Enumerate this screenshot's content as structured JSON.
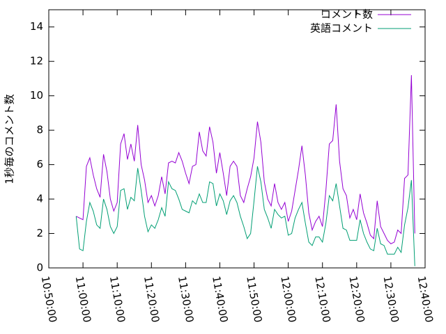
{
  "chart_data": {
    "type": "line",
    "ylabel": "1秒毎のコメント数",
    "x": [
      "10:58:00",
      "10:59:00",
      "11:00:00",
      "11:01:00",
      "11:02:00",
      "11:03:00",
      "11:04:00",
      "11:05:00",
      "11:06:00",
      "11:07:00",
      "11:08:00",
      "11:09:00",
      "11:10:00",
      "11:11:00",
      "11:12:00",
      "11:13:00",
      "11:14:00",
      "11:15:00",
      "11:16:00",
      "11:17:00",
      "11:18:00",
      "11:19:00",
      "11:20:00",
      "11:21:00",
      "11:22:00",
      "11:23:00",
      "11:24:00",
      "11:25:00",
      "11:26:00",
      "11:27:00",
      "11:28:00",
      "11:29:00",
      "11:30:00",
      "11:31:00",
      "11:32:00",
      "11:33:00",
      "11:34:00",
      "11:35:00",
      "11:36:00",
      "11:37:00",
      "11:38:00",
      "11:39:00",
      "11:40:00",
      "11:41:00",
      "11:42:00",
      "11:43:00",
      "11:44:00",
      "11:45:00",
      "11:46:00",
      "11:47:00",
      "11:48:00",
      "11:49:00",
      "11:50:00",
      "11:51:00",
      "11:52:00",
      "11:53:00",
      "11:54:00",
      "11:55:00",
      "11:56:00",
      "11:57:00",
      "11:58:00",
      "11:59:00",
      "12:00:00",
      "12:01:00",
      "12:02:00",
      "12:03:00",
      "12:04:00",
      "12:05:00",
      "12:06:00",
      "12:07:00",
      "12:08:00",
      "12:09:00",
      "12:10:00",
      "12:11:00",
      "12:12:00",
      "12:13:00",
      "12:14:00",
      "12:15:00",
      "12:16:00",
      "12:17:00",
      "12:18:00",
      "12:19:00",
      "12:20:00",
      "12:21:00",
      "12:22:00",
      "12:23:00",
      "12:24:00",
      "12:25:00",
      "12:26:00",
      "12:27:00",
      "12:28:00",
      "12:29:00",
      "12:30:00",
      "12:31:00",
      "12:32:00",
      "12:33:00",
      "12:34:00",
      "12:35:00",
      "12:36:00",
      "12:37:00"
    ],
    "series": [
      {
        "name": "コメント数",
        "color": "#9400d3",
        "values": [
          3.0,
          2.9,
          2.8,
          5.9,
          6.4,
          5.4,
          4.6,
          4.1,
          6.6,
          5.6,
          4.0,
          3.3,
          3.8,
          7.2,
          7.8,
          6.3,
          7.2,
          6.2,
          8.3,
          6.0,
          5.1,
          3.8,
          4.2,
          3.6,
          4.2,
          5.3,
          4.3,
          6.1,
          6.2,
          6.1,
          6.7,
          6.2,
          5.5,
          4.9,
          5.9,
          6.0,
          7.9,
          6.8,
          6.5,
          8.2,
          7.3,
          5.5,
          6.7,
          5.5,
          4.2,
          5.9,
          6.2,
          5.9,
          4.2,
          3.8,
          4.6,
          5.3,
          6.4,
          8.5,
          7.3,
          5.0,
          4.0,
          3.6,
          4.9,
          3.8,
          3.4,
          3.8,
          2.7,
          3.3,
          4.5,
          5.7,
          7.1,
          5.4,
          3.2,
          2.2,
          2.7,
          3.0,
          2.4,
          4.5,
          7.2,
          7.4,
          9.5,
          6.2,
          4.6,
          4.2,
          2.9,
          3.4,
          2.8,
          4.3,
          3.2,
          2.6,
          1.9,
          1.7,
          3.9,
          2.4,
          2.0,
          1.6,
          1.4,
          1.5,
          2.2,
          2.0,
          5.2,
          5.4,
          11.2,
          2.0
        ]
      },
      {
        "name": "英語コメント",
        "color": "#009e73",
        "values": [
          3.0,
          1.1,
          1.0,
          2.7,
          3.8,
          3.3,
          2.5,
          2.3,
          4.0,
          3.4,
          2.4,
          2.0,
          2.4,
          4.5,
          4.6,
          3.4,
          4.1,
          3.9,
          5.8,
          4.5,
          3.0,
          2.1,
          2.5,
          2.3,
          2.8,
          3.5,
          3.0,
          5.0,
          4.6,
          4.5,
          4.0,
          3.4,
          3.3,
          3.2,
          3.9,
          3.7,
          4.3,
          3.8,
          3.8,
          5.0,
          4.9,
          3.6,
          4.3,
          3.9,
          3.1,
          3.9,
          4.2,
          3.8,
          3.0,
          2.4,
          1.7,
          2.0,
          3.9,
          5.9,
          5.0,
          3.4,
          2.9,
          2.3,
          3.4,
          3.1,
          2.9,
          3.0,
          1.9,
          2.0,
          2.9,
          3.4,
          3.8,
          2.6,
          1.5,
          1.3,
          1.8,
          1.8,
          1.5,
          2.6,
          4.2,
          3.9,
          4.9,
          3.6,
          2.3,
          2.2,
          1.6,
          1.6,
          1.6,
          2.8,
          2.0,
          1.5,
          1.1,
          1.0,
          2.3,
          1.4,
          1.3,
          0.8,
          0.8,
          0.8,
          1.2,
          0.9,
          2.5,
          3.5,
          5.1,
          0.1
        ]
      }
    ],
    "xlim": [
      "10:50:00",
      "12:40:00"
    ],
    "xticks": [
      "10:50:00",
      "11:00:00",
      "11:10:00",
      "11:20:00",
      "11:30:00",
      "11:40:00",
      "11:50:00",
      "12:00:00",
      "12:10:00",
      "12:20:00",
      "12:30:00",
      "12:40:00"
    ],
    "ylim": [
      0,
      15
    ],
    "yticks": [
      0,
      2,
      4,
      6,
      8,
      10,
      12,
      14
    ],
    "legend": "top-right"
  }
}
